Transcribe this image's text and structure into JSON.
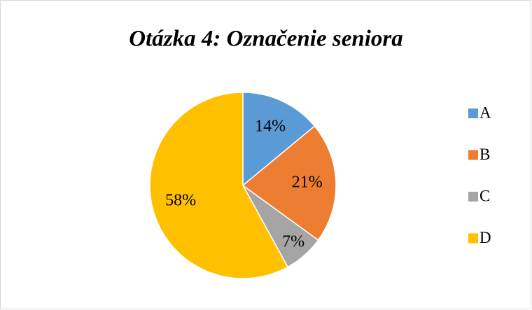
{
  "chart_data": {
    "type": "pie",
    "title": "Otázka 4: Označenie seniora",
    "categories": [
      "A",
      "B",
      "C",
      "D"
    ],
    "values": [
      14,
      21,
      7,
      58
    ],
    "value_labels": [
      "14%",
      "21%",
      "7%",
      "58%"
    ],
    "colors": [
      "#5b9bd5",
      "#ed7d31",
      "#a5a5a5",
      "#ffc000"
    ],
    "legend": "right"
  }
}
